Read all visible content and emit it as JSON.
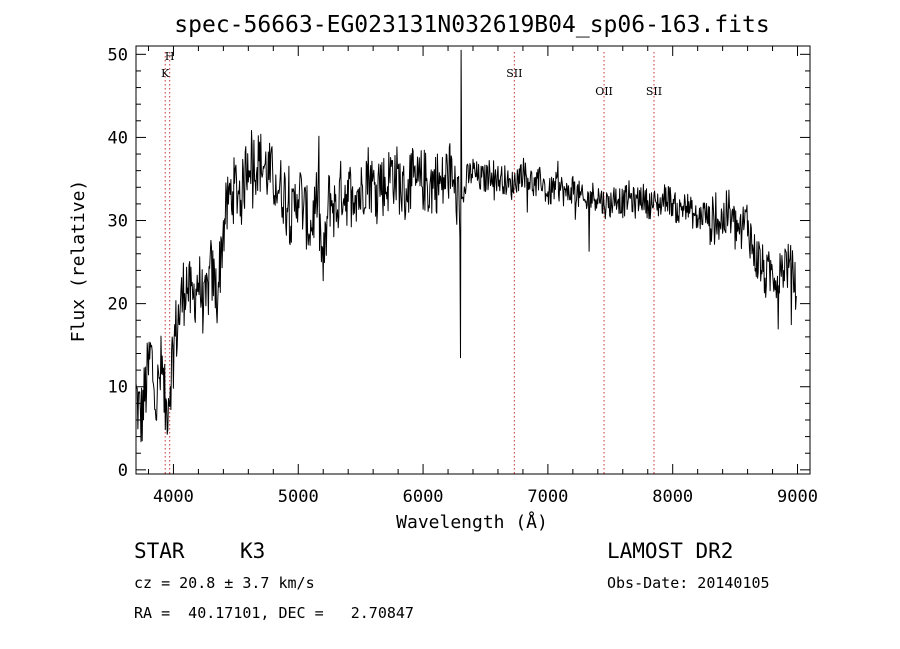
{
  "chart_data": {
    "type": "line",
    "title": "spec-56663-EG023131N032619B04_sp06-163.fits",
    "xlabel": "Wavelength (Å)",
    "ylabel": "Flux (relative)",
    "xlim": [
      3700,
      9100
    ],
    "ylim": [
      -0.5,
      51
    ],
    "x_ticks": [
      4000,
      5000,
      6000,
      7000,
      8000,
      9000
    ],
    "y_ticks": [
      0,
      10,
      20,
      30,
      40,
      50
    ],
    "grid": false,
    "legend": "none",
    "series": [
      {
        "x": [
          3700,
          3740,
          3780,
          3820,
          3860,
          3900,
          3940,
          3970,
          4000,
          4050,
          4100,
          4150,
          4200,
          4250,
          4300,
          4350,
          4400,
          4450,
          4500,
          4550,
          4600,
          4650,
          4700,
          4750,
          4800,
          4850,
          4900,
          4950,
          5000,
          5050,
          5100,
          5150,
          5200,
          5250,
          5300,
          5350,
          5400,
          5450,
          5500,
          5550,
          5600,
          5650,
          5700,
          5750,
          5800,
          5850,
          5900,
          5950,
          6000,
          6050,
          6100,
          6150,
          6200,
          6250,
          6300,
          6350,
          6400,
          6450,
          6500,
          6550,
          6600,
          6650,
          6700,
          6750,
          6800,
          6850,
          6900,
          6950,
          7000,
          7050,
          7100,
          7150,
          7200,
          7250,
          7300,
          7350,
          7400,
          7450,
          7500,
          7550,
          7600,
          7650,
          7700,
          7750,
          7800,
          7850,
          7900,
          7950,
          8000,
          8050,
          8100,
          8150,
          8200,
          8250,
          8300,
          8350,
          8400,
          8450,
          8500,
          8550,
          8600,
          8650,
          8700,
          8750,
          8800,
          8850,
          8900,
          8950,
          8990
        ],
        "y": [
          9,
          6,
          10,
          14,
          8,
          12,
          7,
          10,
          15,
          19,
          23,
          20,
          23,
          19,
          24,
          21,
          29,
          33,
          34,
          33,
          38,
          37,
          37,
          36,
          35,
          34,
          33,
          30,
          34,
          31,
          29,
          33,
          24,
          33,
          31,
          34,
          33,
          34,
          33,
          36,
          34,
          35,
          34,
          36,
          35,
          33,
          35,
          34,
          35,
          34,
          35,
          34,
          36,
          34,
          31,
          35,
          36,
          35,
          35,
          36,
          35,
          35,
          34,
          35,
          36,
          35,
          34,
          35,
          33,
          34,
          34,
          33,
          34,
          33,
          32,
          33,
          33,
          32,
          32,
          33,
          32,
          33,
          32,
          33,
          32,
          32,
          32,
          33,
          32,
          31,
          32,
          31,
          30,
          31,
          30,
          30,
          30,
          31,
          29,
          29,
          30,
          26,
          25,
          23,
          24,
          23,
          25,
          24,
          22
        ]
      }
    ],
    "line_markers": [
      {
        "label": "H",
        "x": 3970
      },
      {
        "label": "K",
        "x": 3934
      },
      {
        "label": "SII",
        "x": 6731
      },
      {
        "label": "OII",
        "x": 7450
      },
      {
        "label": "SII",
        "x": 7850
      }
    ]
  },
  "info": {
    "object_class": "STAR",
    "subclass": "K3",
    "survey": "LAMOST DR2",
    "redshift": "cz = 20.8 ± 3.7 km/s",
    "obs_date": "Obs-Date: 20140105",
    "coords": "RA =  40.17101, DEC =   2.70847"
  },
  "colors": {
    "axis": "#000000",
    "spectrum": "#000000",
    "marker_line": "#cc3333"
  }
}
